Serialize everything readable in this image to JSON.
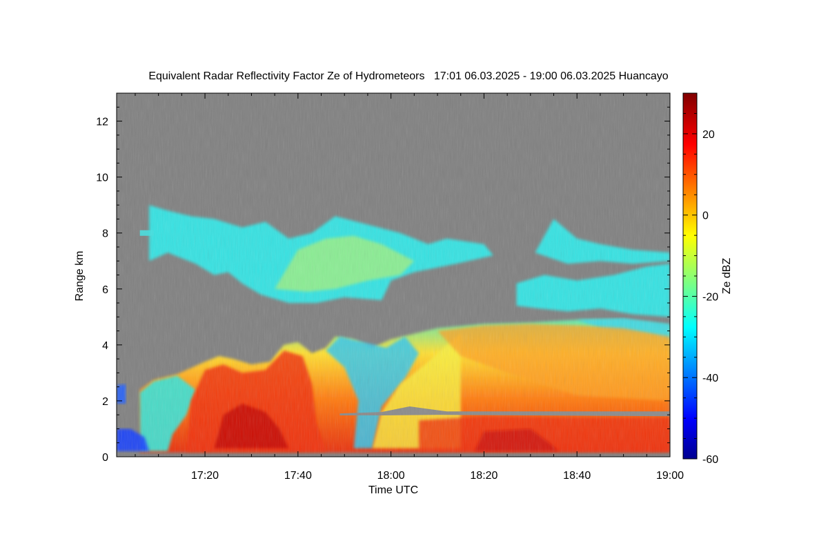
{
  "chart_data": {
    "type": "heatmap",
    "title": "Equivalent Radar Reflectivity Factor Ze of Hydrometeors   17:01 06.03.2025 - 19:00 06.03.2025 Huancayo",
    "xlabel": "Time UTC",
    "ylabel": "Range km",
    "xlim": [
      "17:01",
      "19:00"
    ],
    "ylim": [
      0,
      13
    ],
    "x_ticks": [
      "17:20",
      "17:40",
      "18:00",
      "18:20",
      "18:40",
      "19:00"
    ],
    "y_ticks": [
      0,
      2,
      4,
      6,
      8,
      10,
      12
    ],
    "background_color": "#808080",
    "colorbar": {
      "label": "Ze dBZ",
      "range": [
        -60,
        30
      ],
      "ticks": [
        -60,
        -40,
        -20,
        0,
        20
      ],
      "colormap": "jet"
    },
    "regions": [
      {
        "name": "upper cloud layer",
        "x_range": [
          "17:08",
          "19:00"
        ],
        "y_range": [
          5.3,
          9.0
        ],
        "ze_range": [
          -30,
          -10
        ]
      },
      {
        "name": "lower precipitating layer",
        "x_range": [
          "17:06",
          "19:00"
        ],
        "y_range": [
          0.1,
          4.9
        ],
        "ze_range": [
          -40,
          25
        ]
      },
      {
        "name": "bright band",
        "x_range": [
          "17:49",
          "19:00"
        ],
        "y_range": [
          1.5,
          1.7
        ]
      }
    ]
  }
}
